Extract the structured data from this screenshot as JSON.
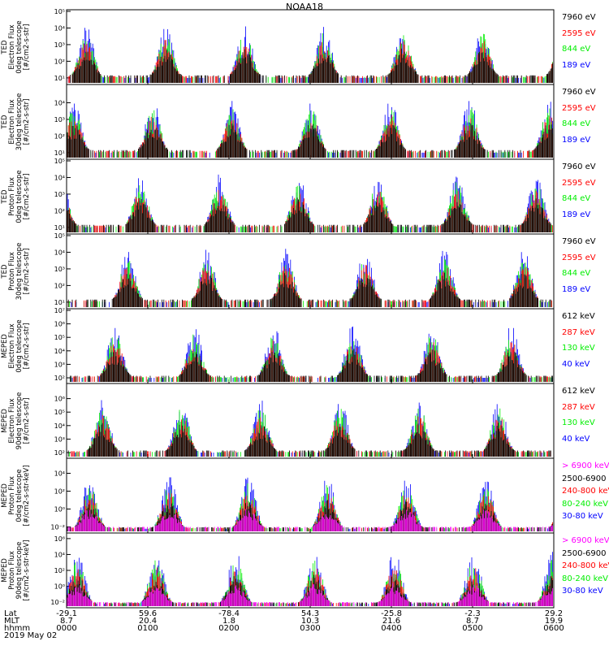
{
  "title": "NOAA18",
  "colors": {
    "black": "#000000",
    "red": "#ff0000",
    "green": "#00ee00",
    "blue": "#0000ff",
    "magenta": "#ff00ff"
  },
  "chart_data": [
    {
      "type": "scatter",
      "ylabel": [
        "TED",
        "Electron Flux",
        "0deg telescope",
        "[#/cm2-s-str]"
      ],
      "yticks": [
        "10^1",
        "10^2",
        "10^3",
        "10^4",
        "10^5"
      ],
      "ylim_log": [
        0.7,
        5
      ],
      "legend": [
        {
          "label": "7960 eV",
          "color": "black"
        },
        {
          "label": "2595 eV",
          "color": "red"
        },
        {
          "label": "844 eV",
          "color": "green"
        },
        {
          "label": "189 eV",
          "color": "blue"
        }
      ]
    },
    {
      "type": "scatter",
      "ylabel": [
        "TED",
        "Electron Flux",
        "30deg telescope",
        "[#/cm2-s-str]"
      ],
      "yticks": [
        "10^1",
        "10^2",
        "10^3",
        "10^4"
      ],
      "ylim_log": [
        0.7,
        5
      ],
      "legend": [
        {
          "label": "7960 eV",
          "color": "black"
        },
        {
          "label": "2595 eV",
          "color": "red"
        },
        {
          "label": "844 eV",
          "color": "green"
        },
        {
          "label": "189 eV",
          "color": "blue"
        }
      ]
    },
    {
      "type": "scatter",
      "ylabel": [
        "TED",
        "Proton Flux",
        "0deg telescope",
        "[#/cm2-s-str]"
      ],
      "yticks": [
        "10^1",
        "10^2",
        "10^3",
        "10^4",
        "10^5"
      ],
      "ylim_log": [
        0.7,
        5
      ],
      "legend": [
        {
          "label": "7960 eV",
          "color": "black"
        },
        {
          "label": "2595 eV",
          "color": "red"
        },
        {
          "label": "844 eV",
          "color": "green"
        },
        {
          "label": "189 eV",
          "color": "blue"
        }
      ]
    },
    {
      "type": "scatter",
      "ylabel": [
        "TED",
        "Proton Flux",
        "30deg telescope",
        "[#/cm2-s-str]"
      ],
      "yticks": [
        "10^1",
        "10^2",
        "10^3",
        "10^4",
        "10^5"
      ],
      "ylim_log": [
        0.7,
        5
      ],
      "legend": [
        {
          "label": "7960 eV",
          "color": "black"
        },
        {
          "label": "2595 eV",
          "color": "red"
        },
        {
          "label": "844 eV",
          "color": "green"
        },
        {
          "label": "189 eV",
          "color": "blue"
        }
      ]
    },
    {
      "type": "scatter",
      "ylabel": [
        "MEPED",
        "Electron Flux",
        "0deg telescope",
        "[#/cm2-s-str]"
      ],
      "yticks": [
        "10^2",
        "10^3",
        "10^4",
        "10^5",
        "10^6",
        "10^7"
      ],
      "ylim_log": [
        1.7,
        7
      ],
      "legend": [
        {
          "label": "612 keV",
          "color": "black"
        },
        {
          "label": "287 keV",
          "color": "red"
        },
        {
          "label": "130 keV",
          "color": "green"
        },
        {
          "label": "40 keV",
          "color": "blue"
        }
      ]
    },
    {
      "type": "scatter",
      "ylabel": [
        "MEPED",
        "Electron Flux",
        "90deg telescope",
        "[#/cm2-s-str]"
      ],
      "yticks": [
        "10^2",
        "10^3",
        "10^4",
        "10^5",
        "10^6"
      ],
      "ylim_log": [
        1.7,
        7
      ],
      "legend": [
        {
          "label": "612 keV",
          "color": "black"
        },
        {
          "label": "287 keV",
          "color": "red"
        },
        {
          "label": "130 keV",
          "color": "green"
        },
        {
          "label": "40 keV",
          "color": "blue"
        }
      ]
    },
    {
      "type": "scatter",
      "ylabel": [
        "MEPED",
        "Proton Flux",
        "0deg telescope",
        "[#/cm2-s-str-keV]"
      ],
      "yticks": [
        "10^-2",
        "10^0",
        "10^2",
        "10^4"
      ],
      "ylim_log": [
        -2.5,
        5.5
      ],
      "legend": [
        {
          "label": "> 6900 keV",
          "color": "magenta"
        },
        {
          "label": "2500-6900",
          "color": "black"
        },
        {
          "label": "240-800 keV",
          "color": "red"
        },
        {
          "label": "80-240 keV",
          "color": "green"
        },
        {
          "label": "30-80 keV",
          "color": "blue"
        }
      ]
    },
    {
      "type": "scatter",
      "ylabel": [
        "MEPED",
        "Proton Flux",
        "90deg telescope",
        "[#/cm2-s-str-keV]"
      ],
      "yticks": [
        "10^-2",
        "10^0",
        "10^2",
        "10^4",
        "10^6"
      ],
      "ylim_log": [
        -2.5,
        6.5
      ],
      "legend": [
        {
          "label": "> 6900 keV",
          "color": "magenta"
        },
        {
          "label": "2500-6900",
          "color": "black"
        },
        {
          "label": "240-800 keV",
          "color": "red"
        },
        {
          "label": "80-240 keV",
          "color": "green"
        },
        {
          "label": "30-80 keV",
          "color": "blue"
        }
      ]
    }
  ],
  "footer": {
    "row_labels": [
      "Lat",
      "MLT",
      "hhmm",
      "2019 May 02"
    ],
    "columns": [
      {
        "lat": "-29.1",
        "mlt": "8.7",
        "hhmm": "0000"
      },
      {
        "lat": "59.6",
        "mlt": "20.4",
        "hhmm": "0100"
      },
      {
        "lat": "-78.4",
        "mlt": "1.8",
        "hhmm": "0200"
      },
      {
        "lat": "54.3",
        "mlt": "10.3",
        "hhmm": "0300"
      },
      {
        "lat": "-25.8",
        "mlt": "21.6",
        "hhmm": "0400"
      },
      {
        "lat": "-2.3",
        "mlt": "8.7",
        "hhmm": "0500"
      },
      {
        "lat": "29.2",
        "mlt": "19.9",
        "hhmm": "0600"
      }
    ]
  }
}
